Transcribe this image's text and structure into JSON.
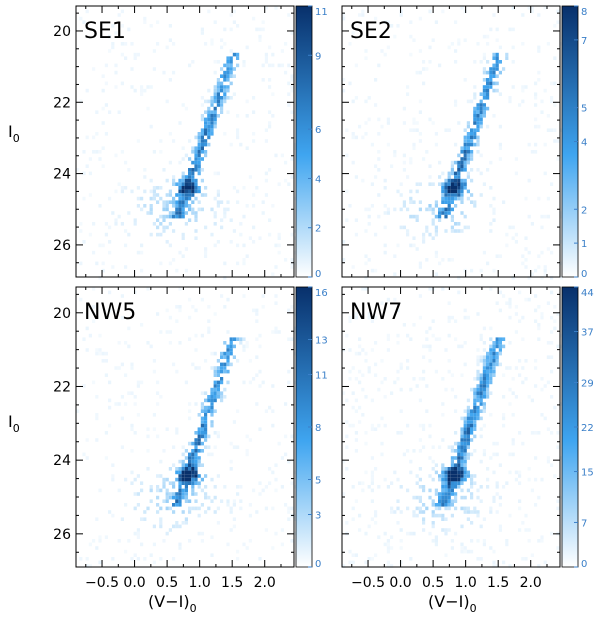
{
  "chart_data": {
    "type": "heatmap",
    "description_axes": {
      "xlabel": "(V−I)",
      "xlabel_sub": "0",
      "ylabel": "I",
      "ylabel_sub": "0"
    },
    "xlim": [
      -0.9,
      2.45
    ],
    "ylim": [
      26.9,
      19.3
    ],
    "x_ticks": [
      -0.5,
      0.0,
      0.5,
      1.0,
      1.5,
      2.0
    ],
    "x_tick_labels": [
      "−0.5",
      "0.0",
      "0.5",
      "1.0",
      "1.5",
      "2.0"
    ],
    "y_ticks": [
      20,
      22,
      24,
      26
    ],
    "y_tick_labels": [
      "20",
      "22",
      "24",
      "26"
    ],
    "colormap": {
      "low": "#ffffff",
      "mid": "#3fa5f0",
      "high": "#08306b"
    },
    "panels": [
      {
        "name": "SE1",
        "colorbar_max": 11,
        "colorbar_ticks": [
          "0",
          "2",
          "4",
          "6",
          "9",
          "11"
        ],
        "colorbar_values": [
          0,
          2,
          4,
          6,
          9,
          11
        ],
        "density": [
          {
            "x": 0.85,
            "y": 24.3,
            "value": 11
          },
          {
            "x": 0.95,
            "y": 23.5,
            "value": 7
          },
          {
            "x": 1.05,
            "y": 22.8,
            "value": 6
          },
          {
            "x": 1.15,
            "y": 22.2,
            "value": 5
          },
          {
            "x": 1.3,
            "y": 21.5,
            "value": 4
          },
          {
            "x": 0.4,
            "y": 24.5,
            "value": 3
          },
          {
            "x": 1.3,
            "y": 24.5,
            "value": 3
          }
        ]
      },
      {
        "name": "SE2",
        "colorbar_max": 8,
        "colorbar_ticks": [
          "0",
          "1",
          "2",
          "4",
          "5",
          "7",
          "8"
        ],
        "colorbar_values": [
          0,
          1,
          2,
          4,
          5,
          7,
          8
        ],
        "density": [
          {
            "x": 0.85,
            "y": 24.4,
            "value": 8
          },
          {
            "x": 0.95,
            "y": 23.6,
            "value": 6
          },
          {
            "x": 1.05,
            "y": 22.8,
            "value": 5
          },
          {
            "x": 1.15,
            "y": 22.0,
            "value": 4
          },
          {
            "x": 1.3,
            "y": 21.3,
            "value": 3
          },
          {
            "x": 0.2,
            "y": 25.3,
            "value": 2
          }
        ]
      },
      {
        "name": "NW5",
        "colorbar_max": 16,
        "colorbar_ticks": [
          "0",
          "3",
          "5",
          "8",
          "11",
          "13",
          "16"
        ],
        "colorbar_values": [
          0,
          3,
          5,
          8,
          11,
          13,
          16
        ],
        "density": [
          {
            "x": 0.85,
            "y": 24.3,
            "value": 16
          },
          {
            "x": 0.95,
            "y": 23.5,
            "value": 10
          },
          {
            "x": 1.05,
            "y": 22.7,
            "value": 8
          },
          {
            "x": 1.1,
            "y": 22.0,
            "value": 6
          },
          {
            "x": 0.4,
            "y": 25.0,
            "value": 4
          },
          {
            "x": 1.4,
            "y": 24.5,
            "value": 4
          }
        ]
      },
      {
        "name": "NW7",
        "colorbar_max": 44,
        "colorbar_ticks": [
          "0",
          "7",
          "15",
          "22",
          "29",
          "37",
          "44"
        ],
        "colorbar_values": [
          0,
          7,
          15,
          22,
          29,
          37,
          44
        ],
        "density": [
          {
            "x": 0.75,
            "y": 24.4,
            "value": 44
          },
          {
            "x": 0.9,
            "y": 23.5,
            "value": 22
          },
          {
            "x": 1.0,
            "y": 22.7,
            "value": 15
          },
          {
            "x": 1.1,
            "y": 22.0,
            "value": 10
          },
          {
            "x": 0.4,
            "y": 25.0,
            "value": 5
          }
        ]
      }
    ]
  }
}
